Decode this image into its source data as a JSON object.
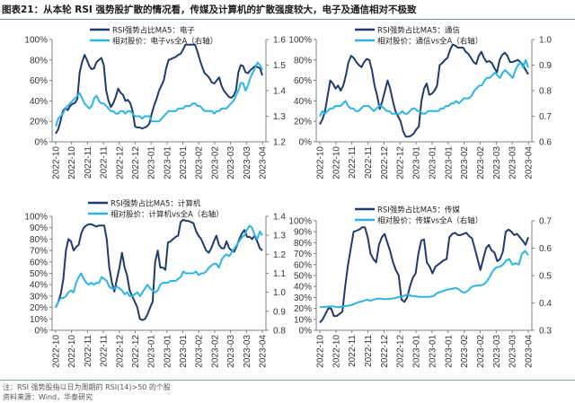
{
  "header": {
    "title": "图表21：从本轮 RSI 强势股扩散的情况看，传媒及计算机的扩散强度较大，电子及通信相对不极致"
  },
  "footer": {
    "note": "注：RSI 强势股指以日为周期的 RSI(14)>50 的个股",
    "source": "资料来源：Wind，华泰研究"
  },
  "colors": {
    "rsi_line": "#1f3c6e",
    "relative_price_line": "#2cb5e8",
    "axis": "#808080"
  },
  "chart_data": [
    {
      "type": "line",
      "title": "电子",
      "x_tick_labels": [
        "2022-10",
        "2022-10",
        "2022-11",
        "2022-11",
        "2022-12",
        "2022-12",
        "2023-01",
        "2023-01",
        "2023-01",
        "2023-02",
        "2023-02",
        "2023-03",
        "2023-03",
        "2023-04"
      ],
      "y_left": {
        "ticks": [
          0,
          20,
          40,
          60,
          80,
          100
        ],
        "tick_labels": [
          "0%",
          "20%",
          "40%",
          "60%",
          "80%",
          "100%"
        ],
        "range": [
          0,
          100
        ]
      },
      "y_right": {
        "ticks": [
          1.2,
          1.3,
          1.4,
          1.5,
          1.6
        ],
        "tick_labels": [
          "1.2",
          "1.3",
          "1.4",
          "1.5",
          "1.6"
        ],
        "range": [
          1.2,
          1.6
        ]
      },
      "series": [
        {
          "name": "RSI强势占比MA5：电子",
          "axis": "left",
          "values": [
            8,
            12,
            20,
            30,
            33,
            31,
            35,
            37,
            38,
            42,
            68,
            78,
            85,
            80,
            74,
            71,
            72,
            78,
            80,
            82,
            75,
            50,
            40,
            34,
            38,
            44,
            52,
            48,
            46,
            40,
            41,
            38,
            30,
            15,
            14,
            14,
            13,
            14,
            15,
            18,
            28,
            36,
            42,
            50,
            55,
            60,
            72,
            80,
            81,
            82,
            83,
            85,
            86,
            90,
            95,
            95,
            95,
            95,
            95,
            88,
            80,
            73,
            67,
            65,
            62,
            58,
            57,
            60,
            63,
            55,
            50,
            47,
            44,
            43,
            45,
            50,
            68,
            75,
            74,
            68,
            67,
            70,
            72,
            74,
            73,
            72,
            65
          ]
        },
        {
          "name": "相对股价：电子vs全A（右轴）",
          "axis": "right",
          "values": [
            1.26,
            1.29,
            1.3,
            1.31,
            1.33,
            1.34,
            1.35,
            1.36,
            1.37,
            1.38,
            1.39,
            1.37,
            1.35,
            1.34,
            1.33,
            1.34,
            1.37,
            1.38,
            1.36,
            1.35,
            1.35,
            1.34,
            1.33,
            1.32,
            1.32,
            1.31,
            1.31,
            1.32,
            1.32,
            1.31,
            1.32,
            1.32,
            1.31,
            1.3,
            1.3,
            1.3,
            1.29,
            1.3,
            1.3,
            1.3,
            1.28,
            1.28,
            1.28,
            1.28,
            1.29,
            1.3,
            1.31,
            1.32,
            1.32,
            1.32,
            1.32,
            1.33,
            1.33,
            1.33,
            1.34,
            1.34,
            1.34,
            1.35,
            1.35,
            1.34,
            1.34,
            1.33,
            1.32,
            1.32,
            1.32,
            1.32,
            1.31,
            1.32,
            1.32,
            1.33,
            1.33,
            1.33,
            1.34,
            1.35,
            1.36,
            1.38,
            1.4,
            1.43,
            1.43,
            1.4,
            1.42,
            1.45,
            1.47,
            1.49,
            1.51,
            1.5,
            1.48
          ]
        }
      ]
    },
    {
      "type": "line",
      "title": "通信",
      "x_tick_labels": [
        "2022-10",
        "2022-10",
        "2022-11",
        "2022-11",
        "2022-12",
        "2022-12",
        "2023-01",
        "2023-01",
        "2023-01",
        "2023-02",
        "2023-02",
        "2023-03",
        "2023-03",
        "2023-04"
      ],
      "y_left": {
        "ticks": [
          0,
          20,
          40,
          60,
          80,
          100
        ],
        "tick_labels": [
          "0%",
          "20%",
          "40%",
          "60%",
          "80%",
          "100%"
        ],
        "range": [
          0,
          100
        ]
      },
      "y_right": {
        "ticks": [
          0.6,
          0.7,
          0.8,
          0.9,
          1.0
        ],
        "tick_labels": [
          "0.6",
          "0.7",
          "0.8",
          "0.9",
          "1.0"
        ],
        "range": [
          0.6,
          1.0
        ]
      },
      "series": [
        {
          "name": "RSI强势占比MA5：通信",
          "axis": "left",
          "values": [
            17,
            22,
            30,
            45,
            60,
            57,
            52,
            55,
            50,
            55,
            65,
            78,
            84,
            82,
            78,
            75,
            73,
            78,
            81,
            80,
            70,
            55,
            45,
            32,
            40,
            50,
            60,
            52,
            40,
            30,
            25,
            20,
            10,
            5,
            5,
            6,
            8,
            12,
            15,
            40,
            52,
            57,
            46,
            47,
            50,
            55,
            75,
            77,
            80,
            82,
            90,
            95,
            94,
            92,
            92,
            92,
            88,
            86,
            82,
            78,
            76,
            84,
            88,
            82,
            78,
            79,
            77,
            72,
            68,
            80,
            85,
            87,
            84,
            78,
            78,
            79,
            80,
            78,
            75,
            70,
            66
          ]
        },
        {
          "name": "相对股价：通信vs全A（右轴）",
          "axis": "right",
          "values": [
            0.7,
            0.72,
            0.71,
            0.72,
            0.73,
            0.73,
            0.74,
            0.74,
            0.74,
            0.75,
            0.76,
            0.74,
            0.73,
            0.73,
            0.72,
            0.72,
            0.73,
            0.74,
            0.74,
            0.74,
            0.73,
            0.72,
            0.73,
            0.74,
            0.74,
            0.73,
            0.72,
            0.72,
            0.71,
            0.71,
            0.71,
            0.71,
            0.72,
            0.71,
            0.71,
            0.72,
            0.73,
            0.73,
            0.72,
            0.72,
            0.71,
            0.71,
            0.72,
            0.72,
            0.72,
            0.72,
            0.72,
            0.73,
            0.73,
            0.74,
            0.74,
            0.75,
            0.75,
            0.76,
            0.75,
            0.76,
            0.77,
            0.77,
            0.77,
            0.78,
            0.8,
            0.81,
            0.82,
            0.82,
            0.84,
            0.85,
            0.85,
            0.86,
            0.87,
            0.86,
            0.85,
            0.87,
            0.88,
            0.87,
            0.86,
            0.85,
            0.88,
            0.9,
            0.91,
            0.89,
            0.92,
            0.89
          ]
        }
      ]
    },
    {
      "type": "line",
      "title": "计算机",
      "x_tick_labels": [
        "2022-10",
        "2022-10",
        "2022-11",
        "2022-11",
        "2022-12",
        "2022-12",
        "2023-01",
        "2023-01",
        "2023-01",
        "2023-02",
        "2023-02",
        "2023-03",
        "2023-03",
        "2023-04"
      ],
      "y_left": {
        "ticks": [
          0,
          10,
          20,
          30,
          40,
          50,
          60,
          70,
          80,
          90,
          100
        ],
        "tick_labels": [
          "0%",
          "10%",
          "20%",
          "30%",
          "40%",
          "50%",
          "60%",
          "70%",
          "80%",
          "90%",
          "100%"
        ],
        "range": [
          0,
          100
        ]
      },
      "y_right": {
        "ticks": [
          0.8,
          0.9,
          1.0,
          1.1,
          1.2,
          1.3,
          1.4
        ],
        "tick_labels": [
          "0.8",
          "0.9",
          "1.0",
          "1.1",
          "1.2",
          "1.3",
          "1.4"
        ],
        "range": [
          0.8,
          1.4
        ]
      },
      "series": [
        {
          "name": "RSI强势占比MA5：计算机",
          "axis": "left",
          "values": [
            20,
            25,
            32,
            45,
            70,
            80,
            78,
            70,
            73,
            75,
            85,
            90,
            92,
            93,
            93,
            92,
            91,
            92,
            92,
            92,
            80,
            55,
            42,
            34,
            45,
            55,
            68,
            55,
            48,
            35,
            30,
            25,
            20,
            10,
            9,
            10,
            14,
            20,
            25,
            60,
            70,
            55,
            55,
            53,
            77,
            78,
            80,
            82,
            83,
            95,
            97,
            96,
            96,
            95,
            94,
            87,
            83,
            80,
            75,
            70,
            68,
            72,
            78,
            83,
            75,
            72,
            72,
            78,
            72,
            70,
            69,
            74,
            80,
            85,
            88,
            82,
            82,
            80,
            83,
            78,
            72,
            70
          ]
        },
        {
          "name": "相对股价：计算机vs全A（右轴）",
          "axis": "right",
          "values": [
            0.92,
            0.95,
            0.97,
            0.97,
            0.98,
            1.0,
            1.01,
            1.0,
            1.05,
            1.08,
            1.1,
            1.07,
            1.05,
            1.04,
            1.05,
            1.04,
            1.05,
            1.05,
            1.08,
            1.07,
            1.06,
            1.03,
            1.02,
            1.02,
            1.03,
            1.02,
            1.01,
            0.99,
            1.0,
            0.98,
            0.98,
            0.99,
            1.0,
            0.98,
            1.0,
            1.02,
            1.04,
            1.02,
            1.01,
            1.0,
            1.01,
            1.04,
            1.05,
            1.05,
            1.05,
            1.06,
            1.06,
            1.06,
            1.07,
            1.08,
            1.11,
            1.1,
            1.1,
            1.1,
            1.1,
            1.11,
            1.09,
            1.1,
            1.1,
            1.11,
            1.13,
            1.14,
            1.15,
            1.15,
            1.13,
            1.17,
            1.19,
            1.2,
            1.19,
            1.21,
            1.23,
            1.25,
            1.27,
            1.29,
            1.3,
            1.33,
            1.35,
            1.34,
            1.3,
            1.28,
            1.32,
            1.3
          ]
        }
      ]
    },
    {
      "type": "line",
      "title": "传媒",
      "x_tick_labels": [
        "2022-10",
        "2022-10",
        "2022-11",
        "2022-11",
        "2022-12",
        "2022-12",
        "2023-01",
        "2023-01",
        "2023-01",
        "2023-02",
        "2023-02",
        "2023-03",
        "2023-03",
        "2023-04"
      ],
      "y_left": {
        "ticks": [
          0,
          10,
          20,
          30,
          40,
          50,
          60,
          70,
          80,
          90,
          100
        ],
        "tick_labels": [
          "0%",
          "10%",
          "20%",
          "30%",
          "40%",
          "50%",
          "60%",
          "70%",
          "80%",
          "90%",
          "100%"
        ],
        "range": [
          0,
          100
        ]
      },
      "y_right": {
        "ticks": [
          0.3,
          0.4,
          0.5,
          0.6,
          0.7
        ],
        "tick_labels": [
          "0.3",
          "0.4",
          "0.5",
          "0.6",
          "0.7"
        ],
        "range": [
          0.3,
          0.7
        ]
      },
      "series": [
        {
          "name": "RSI强势占比MA5：传媒",
          "axis": "left",
          "values": [
            7,
            10,
            15,
            20,
            20,
            13,
            13,
            15,
            17,
            40,
            60,
            75,
            90,
            91,
            92,
            94,
            94,
            85,
            70,
            65,
            62,
            78,
            85,
            88,
            80,
            72,
            62,
            55,
            50,
            28,
            26,
            30,
            40,
            48,
            52,
            70,
            82,
            83,
            62,
            58,
            52,
            58,
            60,
            62,
            64,
            65,
            85,
            88,
            89,
            87,
            87,
            88,
            89,
            86,
            84,
            75,
            65,
            55,
            65,
            75,
            78,
            73,
            71,
            63,
            65,
            72,
            90,
            92,
            90,
            87,
            88,
            85,
            82,
            78,
            85
          ]
        },
        {
          "name": "相对股价：传媒vs全A（右轴）",
          "axis": "right",
          "values": [
            0.385,
            0.385,
            0.386,
            0.387,
            0.388,
            0.386,
            0.384,
            0.387,
            0.389,
            0.39,
            0.392,
            0.397,
            0.402,
            0.405,
            0.408,
            0.412,
            0.408,
            0.412,
            0.415,
            0.416,
            0.414,
            0.414,
            0.415,
            0.416,
            0.418,
            0.422,
            0.423,
            0.428,
            0.432,
            0.425,
            0.425,
            0.423,
            0.422,
            0.422,
            0.422,
            0.423,
            0.425,
            0.435,
            0.44,
            0.443,
            0.448,
            0.45,
            0.452,
            0.455,
            0.45,
            0.44,
            0.438,
            0.446,
            0.458,
            0.462,
            0.464,
            0.465,
            0.468,
            0.48,
            0.5,
            0.52,
            0.53,
            0.532,
            0.54,
            0.555,
            0.56,
            0.54,
            0.545,
            0.54,
            0.58,
            0.59,
            0.575
          ]
        }
      ]
    }
  ]
}
